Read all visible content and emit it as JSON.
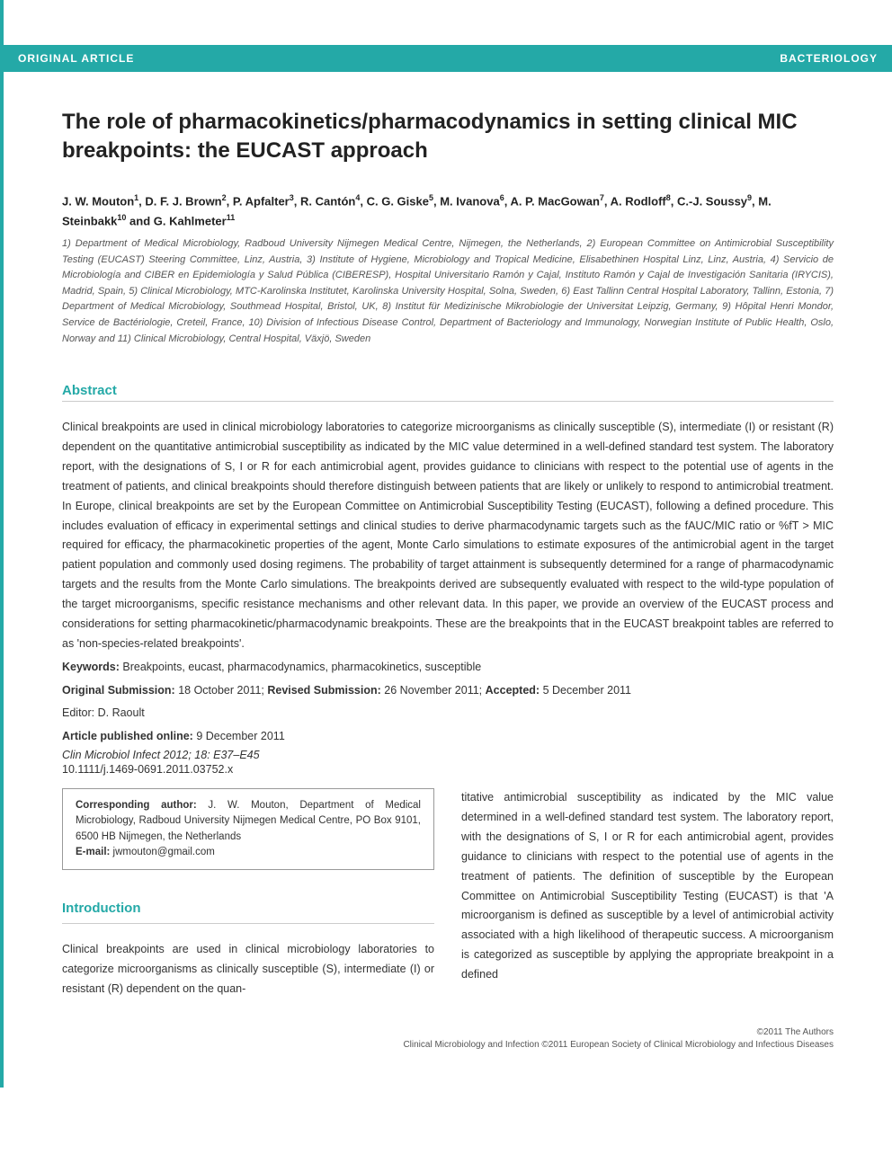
{
  "header": {
    "left": "ORIGINAL ARTICLE",
    "right": "BACTERIOLOGY",
    "bar_bg": "#24a9a7",
    "bar_fg": "#ffffff"
  },
  "title": "The role of pharmacokinetics/pharmacodynamics in setting clinical MIC breakpoints: the EUCAST approach",
  "authors_html": "J. W. Mouton<sup>1</sup>, D. F. J. Brown<sup>2</sup>, P. Apfalter<sup>3</sup>, R. Cantón<sup>4</sup>, C. G. Giske<sup>5</sup>, M. Ivanova<sup>6</sup>, A. P. MacGowan<sup>7</sup>, A. Rodloff<sup>8</sup>, C.-J. Soussy<sup>9</sup>, M. Steinbakk<sup>10</sup> and G. Kahlmeter<sup>11</sup>",
  "affiliations": "1) Department of Medical Microbiology, Radboud University Nijmegen Medical Centre, Nijmegen, the Netherlands, 2) European Committee on Antimicrobial Susceptibility Testing (EUCAST) Steering Committee, Linz, Austria, 3) Institute of Hygiene, Microbiology and Tropical Medicine, Elisabethinen Hospital Linz, Linz, Austria, 4) Servicio de Microbiología and CIBER en Epidemiología y Salud Pública (CIBERESP), Hospital Universitario Ramón y Cajal, Instituto Ramón y Cajal de Investigación Sanitaria (IRYCIS), Madrid, Spain, 5) Clinical Microbiology, MTC-Karolinska Institutet, Karolinska University Hospital, Solna, Sweden, 6) East Tallinn Central Hospital Laboratory, Tallinn, Estonia, 7) Department of Medical Microbiology, Southmead Hospital, Bristol, UK, 8) Institut für Medizinische Mikrobiologie der Universitat Leipzig, Germany, 9) Hôpital Henri Mondor, Service de Bactériologie, Creteil, France, 10) Division of Infectious Disease Control, Department of Bacteriology and Immunology, Norwegian Institute of Public Health, Oslo, Norway and 11) Clinical Microbiology, Central Hospital, Växjö, Sweden",
  "abstract": {
    "heading": "Abstract",
    "text": "Clinical breakpoints are used in clinical microbiology laboratories to categorize microorganisms as clinically susceptible (S), intermediate (I) or resistant (R) dependent on the quantitative antimicrobial susceptibility as indicated by the MIC value determined in a well-defined standard test system. The laboratory report, with the designations of S, I or R for each antimicrobial agent, provides guidance to clinicians with respect to the potential use of agents in the treatment of patients, and clinical breakpoints should therefore distinguish between patients that are likely or unlikely to respond to antimicrobial treatment. In Europe, clinical breakpoints are set by the European Committee on Antimicrobial Susceptibility Testing (EUCAST), following a defined procedure. This includes evaluation of efficacy in experimental settings and clinical studies to derive pharmacodynamic targets such as the fAUC/MIC ratio or %fT > MIC required for efficacy, the pharmacokinetic properties of the agent, Monte Carlo simulations to estimate exposures of the antimicrobial agent in the target patient population and commonly used dosing regimens. The probability of target attainment is subsequently determined for a range of pharmacodynamic targets and the results from the Monte Carlo simulations. The breakpoints derived are subsequently evaluated with respect to the wild-type population of the target microorganisms, specific resistance mechanisms and other relevant data. In this paper, we provide an overview of the EUCAST process and considerations for setting pharmacokinetic/pharmacodynamic breakpoints. These are the breakpoints that in the EUCAST breakpoint tables are referred to as 'non-species-related breakpoints'."
  },
  "keywords": {
    "label": "Keywords:",
    "text": "Breakpoints, eucast, pharmacodynamics, pharmacokinetics, susceptible"
  },
  "submission": {
    "orig_label": "Original Submission:",
    "orig_date": "18 October 2011;",
    "rev_label": "Revised Submission:",
    "rev_date": "26 November 2011;",
    "acc_label": "Accepted:",
    "acc_date": "5 December 2011"
  },
  "editor": "Editor: D. Raoult",
  "pub_online": {
    "label": "Article published online:",
    "date": "9 December 2011"
  },
  "citation": "Clin Microbiol Infect 2012; 18: E37–E45",
  "doi": "10.1111/j.1469-0691.2011.03752.x",
  "corresponding": {
    "label": "Corresponding author:",
    "name": "J. W. Mouton, Department of Medical Microbiology, Radboud University Nijmegen Medical Centre, PO Box 9101, 6500 HB Nijmegen, the Netherlands",
    "email_label": "E-mail:",
    "email": "jwmouton@gmail.com"
  },
  "introduction": {
    "heading": "Introduction",
    "col1": "Clinical breakpoints are used in clinical microbiology laboratories to categorize microorganisms as clinically susceptible (S), intermediate (I) or resistant (R) dependent on the quan-",
    "col2": "titative antimicrobial susceptibility as indicated by the MIC value determined in a well-defined standard test system. The laboratory report, with the designations of S, I or R for each antimicrobial agent, provides guidance to clinicians with respect to the potential use of agents in the treatment of patients. The definition of susceptible by the European Committee on Antimicrobial Susceptibility Testing (EUCAST) is that 'A microorganism is defined as susceptible by a level of antimicrobial activity associated with a high likelihood of therapeutic success. A microorganism is categorized as susceptible by applying the appropriate breakpoint in a defined"
  },
  "footer": {
    "line1": "©2011 The Authors",
    "line2": "Clinical Microbiology and Infection ©2011 European Society of Clinical Microbiology and Infectious Diseases"
  },
  "style": {
    "accent_color": "#24a9a7",
    "body_color": "#333333",
    "affil_color": "#555555",
    "rule_color": "#cccccc",
    "bg_color": "#ffffff"
  }
}
